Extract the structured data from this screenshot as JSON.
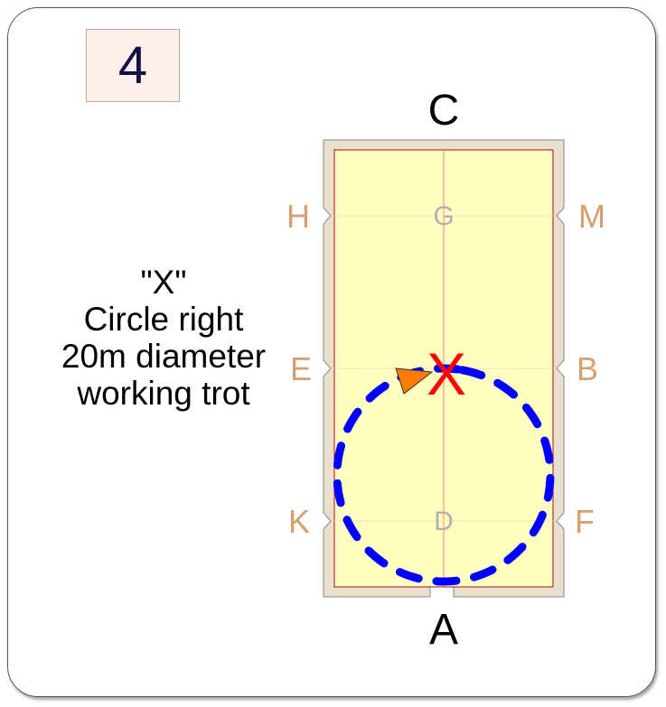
{
  "movement_number": "4",
  "instructions": {
    "line1": "\"X\"",
    "line2": "Circle right",
    "line3": "20m diameter",
    "line4": "working trot"
  },
  "letters": {
    "outer": {
      "C": "C",
      "A": "A",
      "H": "H",
      "E": "E",
      "K": "K",
      "M": "M",
      "B": "B",
      "F": "F"
    },
    "inner": {
      "G": "G",
      "X": "X",
      "D": "D"
    }
  },
  "colors": {
    "arena_fill": "#ffffc0",
    "arena_border": "#e8e0cc",
    "letter_tan": "#d4a070",
    "inner_letter_gray": "#b0b0b0",
    "x_red": "#ff0000",
    "path_blue": "#0000ff",
    "marker_orange": "#ff7a00",
    "movement_box_fill": "#fdf0ea"
  },
  "figure": {
    "description_of_path": "dashed blue circle",
    "marker_icon": "orange-triangle-icon"
  }
}
